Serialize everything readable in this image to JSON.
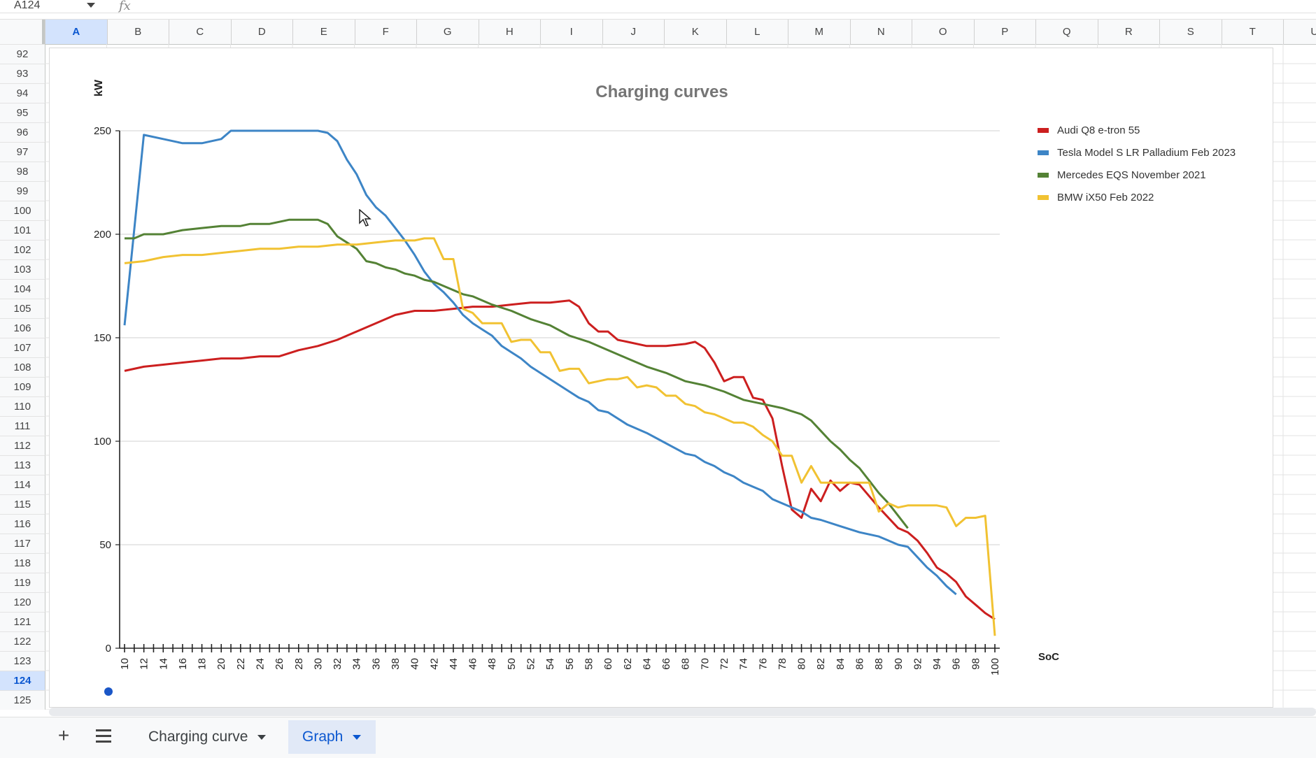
{
  "formula_bar": {
    "name_box": "A124",
    "fx_label": "fx"
  },
  "columns": [
    "A",
    "B",
    "C",
    "D",
    "E",
    "F",
    "G",
    "H",
    "I",
    "J",
    "K",
    "L",
    "M",
    "N",
    "O",
    "P",
    "Q",
    "R",
    "S",
    "T",
    "U"
  ],
  "selected_column": "A",
  "rows": [
    "92",
    "93",
    "94",
    "95",
    "96",
    "97",
    "98",
    "99",
    "100",
    "101",
    "102",
    "103",
    "104",
    "105",
    "106",
    "107",
    "108",
    "109",
    "110",
    "111",
    "112",
    "113",
    "114",
    "115",
    "116",
    "117",
    "118",
    "119",
    "120",
    "121",
    "122",
    "123",
    "124",
    "125"
  ],
  "selected_row": "124",
  "sheets": {
    "tab1_label": "Charging curve",
    "tab2_label": "Graph",
    "active": "Graph"
  },
  "colors": {
    "audi": "#cc1f1f",
    "tesla": "#3d85c6",
    "mercedes": "#548235",
    "bmw": "#f1c232",
    "accent": "#0b57d0"
  },
  "chart_data": {
    "type": "line",
    "title": "Charging curves",
    "xlabel": "SoC",
    "ylabel": "kW",
    "ylim": [
      0,
      250
    ],
    "yticks": [
      0,
      50,
      100,
      150,
      200,
      250
    ],
    "xlim": [
      10,
      100
    ],
    "xticks": [
      10,
      12,
      14,
      16,
      18,
      20,
      22,
      24,
      26,
      28,
      30,
      32,
      34,
      36,
      38,
      40,
      42,
      44,
      46,
      48,
      50,
      52,
      54,
      56,
      58,
      60,
      62,
      64,
      66,
      68,
      70,
      72,
      74,
      76,
      78,
      80,
      82,
      84,
      86,
      88,
      90,
      92,
      94,
      96,
      98,
      100
    ],
    "legend_position": "right",
    "series": [
      {
        "name": "Audi Q8 e-tron 55",
        "color": "#cc1f1f",
        "points": [
          [
            10,
            134
          ],
          [
            12,
            136
          ],
          [
            14,
            137
          ],
          [
            16,
            138
          ],
          [
            18,
            139
          ],
          [
            20,
            140
          ],
          [
            22,
            140
          ],
          [
            24,
            141
          ],
          [
            26,
            141
          ],
          [
            28,
            144
          ],
          [
            30,
            146
          ],
          [
            32,
            149
          ],
          [
            34,
            153
          ],
          [
            36,
            157
          ],
          [
            38,
            161
          ],
          [
            40,
            163
          ],
          [
            42,
            163
          ],
          [
            44,
            164
          ],
          [
            46,
            165
          ],
          [
            48,
            165
          ],
          [
            50,
            166
          ],
          [
            52,
            167
          ],
          [
            54,
            167
          ],
          [
            56,
            168
          ],
          [
            57,
            165
          ],
          [
            58,
            157
          ],
          [
            59,
            153
          ],
          [
            60,
            153
          ],
          [
            61,
            149
          ],
          [
            62,
            148
          ],
          [
            64,
            146
          ],
          [
            66,
            146
          ],
          [
            68,
            147
          ],
          [
            69,
            148
          ],
          [
            70,
            145
          ],
          [
            71,
            138
          ],
          [
            72,
            129
          ],
          [
            73,
            131
          ],
          [
            74,
            131
          ],
          [
            75,
            121
          ],
          [
            76,
            120
          ],
          [
            77,
            111
          ],
          [
            78,
            88
          ],
          [
            79,
            67
          ],
          [
            80,
            63
          ],
          [
            81,
            77
          ],
          [
            82,
            71
          ],
          [
            83,
            81
          ],
          [
            84,
            76
          ],
          [
            85,
            80
          ],
          [
            86,
            79
          ],
          [
            88,
            68
          ],
          [
            90,
            58
          ],
          [
            91,
            56
          ],
          [
            92,
            52
          ],
          [
            93,
            46
          ],
          [
            94,
            39
          ],
          [
            95,
            36
          ],
          [
            96,
            32
          ],
          [
            97,
            25
          ],
          [
            98,
            21
          ],
          [
            99,
            17
          ],
          [
            100,
            14
          ]
        ]
      },
      {
        "name": "Tesla Model S LR Palladium Feb 2023",
        "color": "#3d85c6",
        "points": [
          [
            10,
            156
          ],
          [
            12,
            248
          ],
          [
            14,
            246
          ],
          [
            16,
            244
          ],
          [
            18,
            244
          ],
          [
            20,
            246
          ],
          [
            21,
            250
          ],
          [
            30,
            250
          ],
          [
            31,
            249
          ],
          [
            32,
            245
          ],
          [
            33,
            236
          ],
          [
            34,
            229
          ],
          [
            35,
            219
          ],
          [
            36,
            213
          ],
          [
            37,
            209
          ],
          [
            38,
            203
          ],
          [
            39,
            197
          ],
          [
            40,
            190
          ],
          [
            41,
            182
          ],
          [
            42,
            176
          ],
          [
            43,
            172
          ],
          [
            44,
            167
          ],
          [
            45,
            161
          ],
          [
            46,
            157
          ],
          [
            47,
            154
          ],
          [
            48,
            151
          ],
          [
            49,
            146
          ],
          [
            50,
            143
          ],
          [
            51,
            140
          ],
          [
            52,
            136
          ],
          [
            54,
            130
          ],
          [
            56,
            124
          ],
          [
            57,
            121
          ],
          [
            58,
            119
          ],
          [
            59,
            115
          ],
          [
            60,
            114
          ],
          [
            62,
            108
          ],
          [
            64,
            104
          ],
          [
            66,
            99
          ],
          [
            68,
            94
          ],
          [
            69,
            93
          ],
          [
            70,
            90
          ],
          [
            71,
            88
          ],
          [
            72,
            85
          ],
          [
            73,
            83
          ],
          [
            74,
            80
          ],
          [
            75,
            78
          ],
          [
            76,
            76
          ],
          [
            77,
            72
          ],
          [
            78,
            70
          ],
          [
            80,
            66
          ],
          [
            81,
            63
          ],
          [
            82,
            62
          ],
          [
            84,
            59
          ],
          [
            86,
            56
          ],
          [
            88,
            54
          ],
          [
            90,
            50
          ],
          [
            91,
            49
          ],
          [
            92,
            44
          ],
          [
            93,
            39
          ],
          [
            94,
            35
          ],
          [
            95,
            30
          ],
          [
            96,
            26
          ]
        ]
      },
      {
        "name": "Mercedes EQS November 2021",
        "color": "#548235",
        "points": [
          [
            10,
            198
          ],
          [
            11,
            198
          ],
          [
            12,
            200
          ],
          [
            14,
            200
          ],
          [
            16,
            202
          ],
          [
            18,
            203
          ],
          [
            20,
            204
          ],
          [
            22,
            204
          ],
          [
            23,
            205
          ],
          [
            25,
            205
          ],
          [
            27,
            207
          ],
          [
            30,
            207
          ],
          [
            31,
            205
          ],
          [
            32,
            199
          ],
          [
            33,
            196
          ],
          [
            34,
            193
          ],
          [
            35,
            187
          ],
          [
            36,
            186
          ],
          [
            37,
            184
          ],
          [
            38,
            183
          ],
          [
            39,
            181
          ],
          [
            40,
            180
          ],
          [
            41,
            178
          ],
          [
            42,
            177
          ],
          [
            43,
            175
          ],
          [
            44,
            173
          ],
          [
            45,
            171
          ],
          [
            46,
            170
          ],
          [
            48,
            166
          ],
          [
            50,
            163
          ],
          [
            52,
            159
          ],
          [
            54,
            156
          ],
          [
            56,
            151
          ],
          [
            58,
            148
          ],
          [
            60,
            144
          ],
          [
            62,
            140
          ],
          [
            64,
            136
          ],
          [
            66,
            133
          ],
          [
            67,
            131
          ],
          [
            68,
            129
          ],
          [
            70,
            127
          ],
          [
            72,
            124
          ],
          [
            73,
            122
          ],
          [
            74,
            120
          ],
          [
            76,
            118
          ],
          [
            78,
            116
          ],
          [
            80,
            113
          ],
          [
            81,
            110
          ],
          [
            82,
            105
          ],
          [
            83,
            100
          ],
          [
            84,
            96
          ],
          [
            85,
            91
          ],
          [
            86,
            87
          ],
          [
            87,
            81
          ],
          [
            88,
            75
          ],
          [
            89,
            70
          ],
          [
            90,
            64
          ],
          [
            91,
            58
          ]
        ]
      },
      {
        "name": "BMW iX50 Feb 2022",
        "color": "#f1c232",
        "points": [
          [
            10,
            186
          ],
          [
            12,
            187
          ],
          [
            14,
            189
          ],
          [
            16,
            190
          ],
          [
            18,
            190
          ],
          [
            20,
            191
          ],
          [
            22,
            192
          ],
          [
            24,
            193
          ],
          [
            26,
            193
          ],
          [
            28,
            194
          ],
          [
            30,
            194
          ],
          [
            32,
            195
          ],
          [
            34,
            195
          ],
          [
            36,
            196
          ],
          [
            38,
            197
          ],
          [
            40,
            197
          ],
          [
            41,
            198
          ],
          [
            42,
            198
          ],
          [
            43,
            188
          ],
          [
            44,
            188
          ],
          [
            45,
            164
          ],
          [
            46,
            162
          ],
          [
            47,
            157
          ],
          [
            48,
            157
          ],
          [
            49,
            157
          ],
          [
            50,
            148
          ],
          [
            51,
            149
          ],
          [
            52,
            149
          ],
          [
            53,
            143
          ],
          [
            54,
            143
          ],
          [
            55,
            134
          ],
          [
            56,
            135
          ],
          [
            57,
            135
          ],
          [
            58,
            128
          ],
          [
            59,
            129
          ],
          [
            60,
            130
          ],
          [
            61,
            130
          ],
          [
            62,
            131
          ],
          [
            63,
            126
          ],
          [
            64,
            127
          ],
          [
            65,
            126
          ],
          [
            66,
            122
          ],
          [
            67,
            122
          ],
          [
            68,
            118
          ],
          [
            69,
            117
          ],
          [
            70,
            114
          ],
          [
            71,
            113
          ],
          [
            72,
            111
          ],
          [
            73,
            109
          ],
          [
            74,
            109
          ],
          [
            75,
            107
          ],
          [
            76,
            103
          ],
          [
            77,
            100
          ],
          [
            78,
            93
          ],
          [
            79,
            93
          ],
          [
            80,
            80
          ],
          [
            81,
            88
          ],
          [
            82,
            80
          ],
          [
            83,
            80
          ],
          [
            84,
            80
          ],
          [
            85,
            80
          ],
          [
            86,
            80
          ],
          [
            87,
            80
          ],
          [
            88,
            66
          ],
          [
            89,
            70
          ],
          [
            90,
            68
          ],
          [
            91,
            69
          ],
          [
            92,
            69
          ],
          [
            93,
            69
          ],
          [
            94,
            69
          ],
          [
            95,
            68
          ],
          [
            96,
            59
          ],
          [
            97,
            63
          ],
          [
            98,
            63
          ],
          [
            99,
            64
          ],
          [
            100,
            6
          ]
        ]
      }
    ]
  }
}
